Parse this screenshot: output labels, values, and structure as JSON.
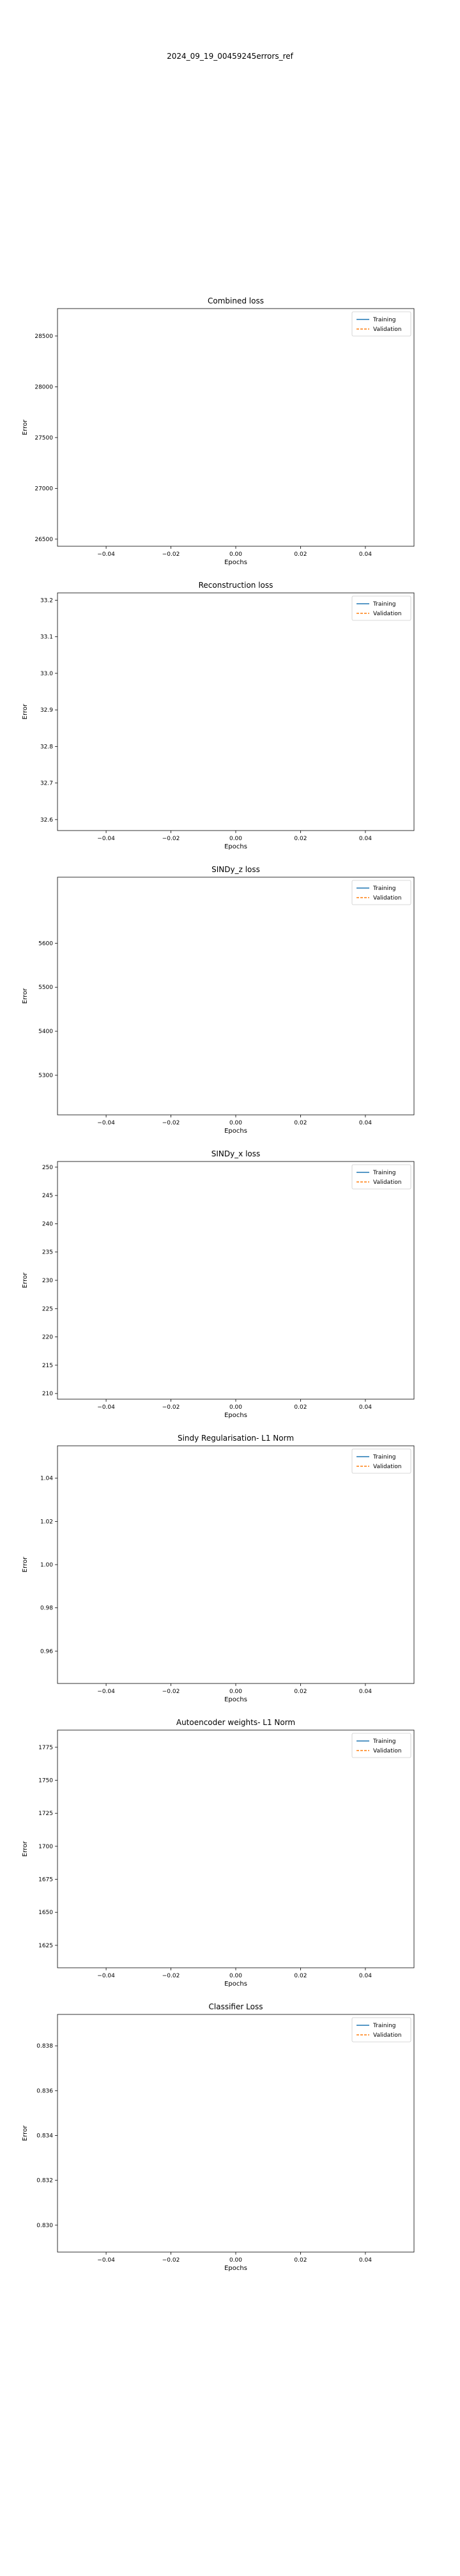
{
  "figure": {
    "suptitle": "2024_09_19_00459245errors_ref"
  },
  "colors": {
    "training": "#1f77b4",
    "validation": "#ff7f0e",
    "axes": "#000000"
  },
  "chart_data": [
    {
      "type": "line",
      "title": "Combined loss",
      "xlabel": "Epochs",
      "ylabel": "Error",
      "xlim": [
        -0.055,
        0.055
      ],
      "ylim": [
        26430,
        28770
      ],
      "xticks": [
        -0.04,
        -0.02,
        0.0,
        0.02,
        0.04
      ],
      "xtick_labels": [
        "−0.04",
        "−0.02",
        "0.00",
        "0.02",
        "0.04"
      ],
      "yticks": [
        26500,
        27000,
        27500,
        28000,
        28500
      ],
      "ytick_labels": [
        "26500",
        "27000",
        "27500",
        "28000",
        "28500"
      ],
      "grid": false,
      "legend": "top-right",
      "series": [
        {
          "name": "Training",
          "style": "solid",
          "x": [],
          "y": []
        },
        {
          "name": "Validation",
          "style": "dashed",
          "x": [],
          "y": []
        }
      ]
    },
    {
      "type": "line",
      "title": "Reconstruction loss",
      "xlabel": "Epochs",
      "ylabel": "Error",
      "xlim": [
        -0.055,
        0.055
      ],
      "ylim": [
        32.57,
        33.22
      ],
      "xticks": [
        -0.04,
        -0.02,
        0.0,
        0.02,
        0.04
      ],
      "xtick_labels": [
        "−0.04",
        "−0.02",
        "0.00",
        "0.02",
        "0.04"
      ],
      "yticks": [
        32.6,
        32.7,
        32.8,
        32.9,
        33.0,
        33.1,
        33.2
      ],
      "ytick_labels": [
        "32.6",
        "32.7",
        "32.8",
        "32.9",
        "33.0",
        "33.1",
        "33.2"
      ],
      "grid": false,
      "legend": "top-right",
      "series": [
        {
          "name": "Training",
          "style": "solid",
          "x": [],
          "y": []
        },
        {
          "name": "Validation",
          "style": "dashed",
          "x": [],
          "y": []
        }
      ]
    },
    {
      "type": "line",
      "title": "SINDy_z loss",
      "xlabel": "Epochs",
      "ylabel": "Error",
      "xlim": [
        -0.055,
        0.055
      ],
      "ylim": [
        5210,
        5750
      ],
      "xticks": [
        -0.04,
        -0.02,
        0.0,
        0.02,
        0.04
      ],
      "xtick_labels": [
        "−0.04",
        "−0.02",
        "0.00",
        "0.02",
        "0.04"
      ],
      "yticks": [
        5300,
        5400,
        5500,
        5600
      ],
      "ytick_labels": [
        "5300",
        "5400",
        "5500",
        "5600"
      ],
      "grid": false,
      "legend": "top-right",
      "series": [
        {
          "name": "Training",
          "style": "solid",
          "x": [],
          "y": []
        },
        {
          "name": "Validation",
          "style": "dashed",
          "x": [],
          "y": []
        }
      ]
    },
    {
      "type": "line",
      "title": "SINDy_x loss",
      "xlabel": "Epochs",
      "ylabel": "Error",
      "xlim": [
        -0.055,
        0.055
      ],
      "ylim": [
        209,
        251
      ],
      "xticks": [
        -0.04,
        -0.02,
        0.0,
        0.02,
        0.04
      ],
      "xtick_labels": [
        "−0.04",
        "−0.02",
        "0.00",
        "0.02",
        "0.04"
      ],
      "yticks": [
        210,
        215,
        220,
        225,
        230,
        235,
        240,
        245,
        250
      ],
      "ytick_labels": [
        "210",
        "215",
        "220",
        "225",
        "230",
        "235",
        "240",
        "245",
        "250"
      ],
      "grid": false,
      "legend": "top-right",
      "series": [
        {
          "name": "Training",
          "style": "solid",
          "x": [],
          "y": []
        },
        {
          "name": "Validation",
          "style": "dashed",
          "x": [],
          "y": []
        }
      ]
    },
    {
      "type": "line",
      "title": "Sindy Regularisation- L1 Norm",
      "xlabel": "Epochs",
      "ylabel": "Error",
      "xlim": [
        -0.055,
        0.055
      ],
      "ylim": [
        0.945,
        1.055
      ],
      "xticks": [
        -0.04,
        -0.02,
        0.0,
        0.02,
        0.04
      ],
      "xtick_labels": [
        "−0.04",
        "−0.02",
        "0.00",
        "0.02",
        "0.04"
      ],
      "yticks": [
        0.96,
        0.98,
        1.0,
        1.02,
        1.04
      ],
      "ytick_labels": [
        "0.96",
        "0.98",
        "1.00",
        "1.02",
        "1.04"
      ],
      "grid": false,
      "legend": "top-right",
      "series": [
        {
          "name": "Training",
          "style": "solid",
          "x": [],
          "y": []
        },
        {
          "name": "Validation",
          "style": "dashed",
          "x": [],
          "y": []
        }
      ]
    },
    {
      "type": "line",
      "title": "Autoencoder weights- L1 Norm",
      "xlabel": "Epochs",
      "ylabel": "Error",
      "xlim": [
        -0.055,
        0.055
      ],
      "ylim": [
        1608,
        1788
      ],
      "xticks": [
        -0.04,
        -0.02,
        0.0,
        0.02,
        0.04
      ],
      "xtick_labels": [
        "−0.04",
        "−0.02",
        "0.00",
        "0.02",
        "0.04"
      ],
      "yticks": [
        1625,
        1650,
        1675,
        1700,
        1725,
        1750,
        1775
      ],
      "ytick_labels": [
        "1625",
        "1650",
        "1675",
        "1700",
        "1725",
        "1750",
        "1775"
      ],
      "grid": false,
      "legend": "top-right",
      "series": [
        {
          "name": "Training",
          "style": "solid",
          "x": [],
          "y": []
        },
        {
          "name": "Validation",
          "style": "dashed",
          "x": [],
          "y": []
        }
      ]
    },
    {
      "type": "line",
      "title": "Classifier Loss",
      "xlabel": "Epochs",
      "ylabel": "Error",
      "xlim": [
        -0.055,
        0.055
      ],
      "ylim": [
        0.8288,
        0.8394
      ],
      "xticks": [
        -0.04,
        -0.02,
        0.0,
        0.02,
        0.04
      ],
      "xtick_labels": [
        "−0.04",
        "−0.02",
        "0.00",
        "0.02",
        "0.04"
      ],
      "yticks": [
        0.83,
        0.832,
        0.834,
        0.836,
        0.838
      ],
      "ytick_labels": [
        "0.830",
        "0.832",
        "0.834",
        "0.836",
        "0.838"
      ],
      "grid": false,
      "legend": "top-right",
      "series": [
        {
          "name": "Training",
          "style": "solid",
          "x": [],
          "y": []
        },
        {
          "name": "Validation",
          "style": "dashed",
          "x": [],
          "y": []
        }
      ]
    }
  ]
}
